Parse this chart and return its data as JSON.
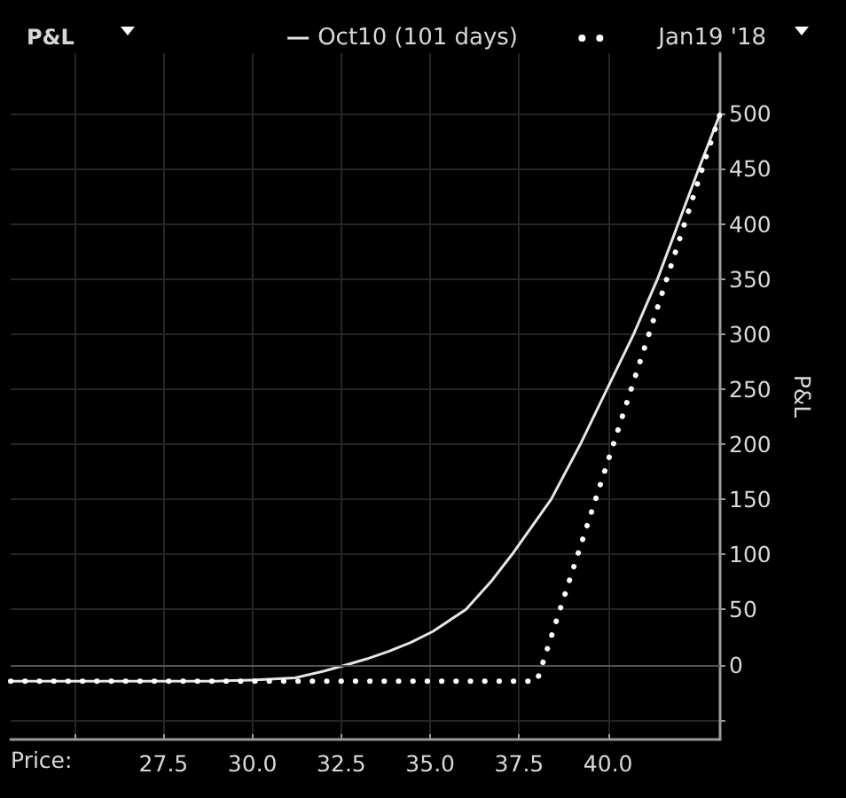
{
  "chart_data": {
    "type": "line",
    "title": "P&L",
    "xlabel": "Price:",
    "ylabel": "P&L",
    "xlim": [
      23.2,
      43.15
    ],
    "ylim": [
      -68,
      555
    ],
    "xticks": [
      {
        "value": 25,
        "label": null
      },
      27.5,
      {
        "value": 30,
        "label": "30.0"
      },
      32.5,
      {
        "value": 35,
        "label": "35.0"
      },
      37.5,
      {
        "value": 40,
        "label": "40.0"
      }
    ],
    "yticks": [
      {
        "value": -50,
        "label": null
      },
      0,
      50,
      100,
      150,
      200,
      250,
      300,
      350,
      400,
      450,
      500
    ],
    "grid": true,
    "legend": "top right",
    "ref_lines": [
      {
        "axis": "y",
        "value": 0,
        "color": "#555555"
      }
    ],
    "series": [
      {
        "name": "Oct10 (101 days)",
        "color": "#e6e6e6",
        "line_style": "solid",
        "x": [
          23.2,
          29.0,
          30.0,
          31.2,
          32.0,
          32.67,
          33.2,
          33.83,
          34.45,
          35.07,
          36.0,
          36.7,
          37.3,
          38.4,
          39.22,
          39.97,
          40.72,
          41.39,
          41.97,
          42.55,
          43.15
        ],
        "values": [
          -15,
          -15,
          -14,
          -12,
          -6,
          0,
          5,
          12,
          20,
          30,
          50,
          75,
          100,
          150,
          200,
          250,
          300,
          350,
          400,
          450,
          500
        ]
      },
      {
        "name": "Jan19 '18",
        "color": "#ffffff",
        "line_style": "dotted",
        "x": [
          23.2,
          38.0,
          43.15
        ],
        "values": [
          -15,
          -15,
          500
        ]
      }
    ]
  }
}
